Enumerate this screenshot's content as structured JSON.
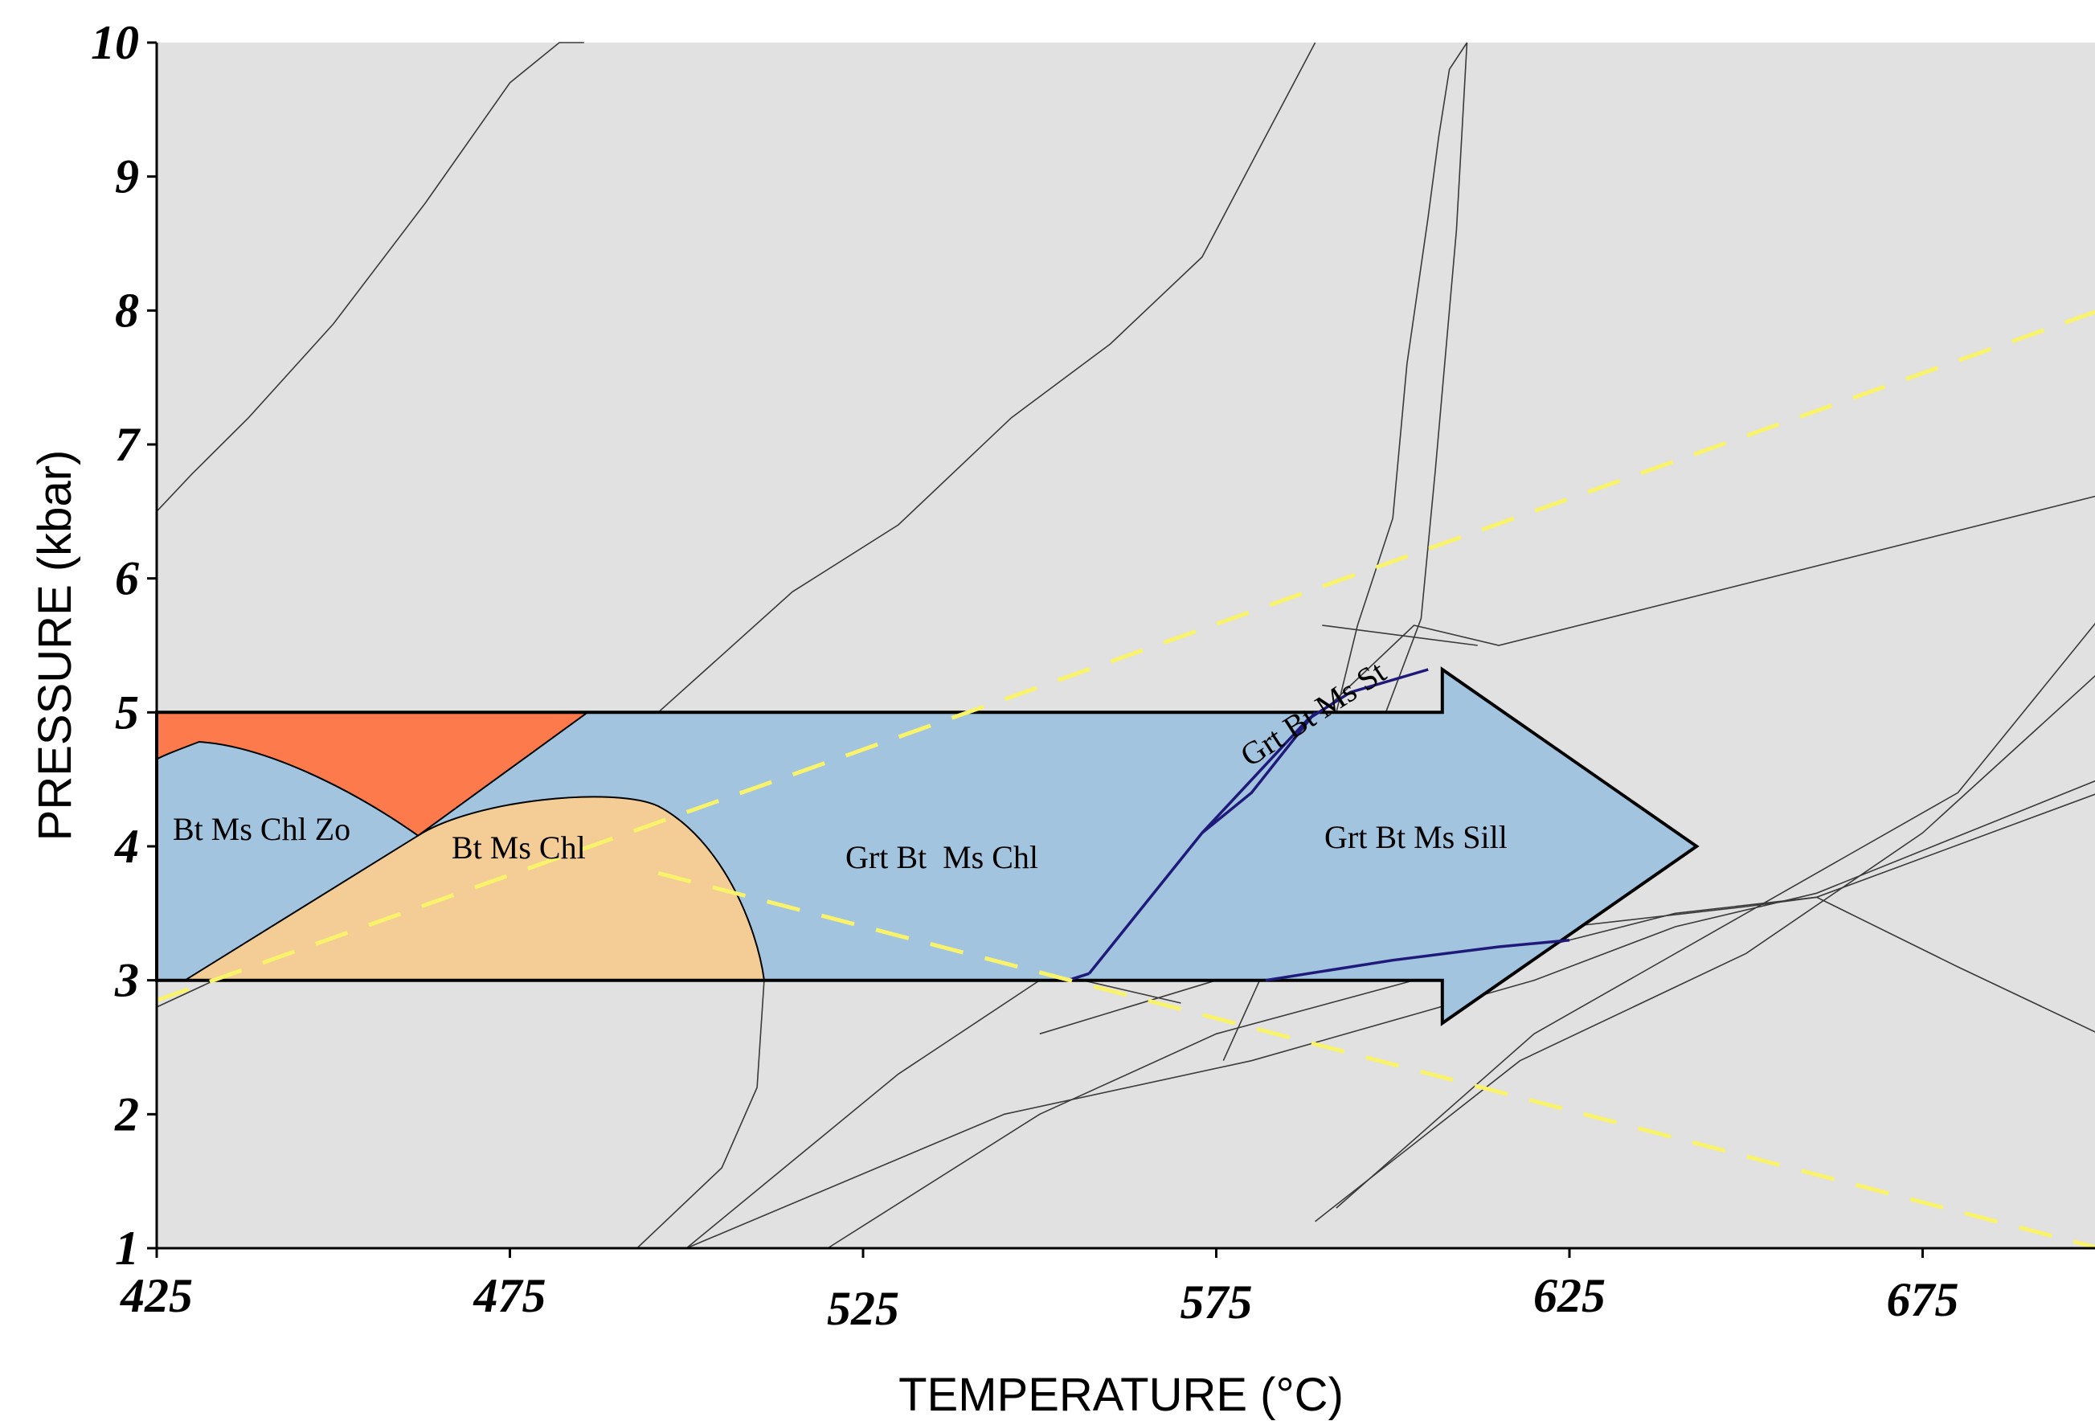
{
  "chart_data": {
    "type": "line",
    "title": "",
    "xlabel": "TEMPERATURE (°C)",
    "ylabel": "PRESSURE (kbar)",
    "xlim": [
      425,
      700
    ],
    "ylim": [
      1,
      10
    ],
    "x_ticks": [
      425,
      475,
      525,
      575,
      625,
      675
    ],
    "x_tick_labels": [
      "425",
      "475",
      "525",
      "575",
      "625",
      "675"
    ],
    "y_ticks": [
      1,
      2,
      3,
      4,
      5,
      6,
      7,
      8,
      9,
      10
    ],
    "y_tick_labels": [
      "1",
      "2",
      "3",
      "4",
      "5",
      "6",
      "7",
      "8",
      "9",
      "10"
    ],
    "background_color": "#e1e1e1",
    "grid": false,
    "legend": "none",
    "reaction_lines": [
      {
        "x": [
          425,
          430,
          438,
          450,
          463,
          475,
          482,
          485.5
        ],
        "y": [
          6.5,
          6.78,
          7.2,
          7.9,
          8.8,
          9.7,
          10,
          10
        ]
      },
      {
        "x": [
          425,
          470,
          486,
          496,
          515,
          530,
          546,
          560,
          573,
          581,
          589
        ],
        "y": [
          2.8,
          3.9,
          4.5,
          5.0,
          5.9,
          6.4,
          7.2,
          7.75,
          8.4,
          9.2,
          10
        ]
      },
      {
        "x": [
          576,
          588,
          599,
          604,
          606,
          609,
          610.5
        ],
        "y": [
          2.4,
          3.8,
          5.0,
          5.7,
          6.8,
          8.6,
          10
        ]
      },
      {
        "x": [
          582,
          590,
          592,
          595,
          600,
          602,
          605,
          606.5,
          608,
          610.5
        ],
        "y": [
          3.3,
          4.5,
          5.0,
          5.65,
          6.45,
          7.6,
          8.7,
          9.3,
          9.8,
          10
        ]
      },
      {
        "x": [
          500,
          530,
          550,
          555,
          575,
          590,
          603,
          615,
          700
        ],
        "y": [
          1,
          2.3,
          3.0,
          3.3,
          4.0,
          5.0,
          5.65,
          5.5,
          6.62
        ]
      },
      {
        "x": [
          590,
          612
        ],
        "y": [
          5.65,
          5.5
        ]
      },
      {
        "x": [
          589,
          618,
          650,
          675,
          700
        ],
        "y": [
          1.2,
          2.4,
          3.2,
          4.1,
          5.3
        ]
      },
      {
        "x": [
          592,
          620,
          650,
          680,
          700
        ],
        "y": [
          1.3,
          2.6,
          3.5,
          4.4,
          5.7
        ]
      },
      {
        "x": [
          500,
          545,
          580,
          620,
          640,
          660,
          700
        ],
        "y": [
          1,
          2.0,
          2.4,
          3.0,
          3.4,
          3.65,
          4.5
        ]
      },
      {
        "x": [
          520,
          550,
          575,
          610,
          640,
          660,
          700
        ],
        "y": [
          1,
          2.0,
          2.6,
          3.1,
          3.5,
          3.62,
          4.4
        ]
      },
      {
        "x": [
          550,
          575,
          600,
          625,
          650,
          660
        ],
        "y": [
          2.6,
          3.0,
          3.25,
          3.4,
          3.55,
          3.62
        ]
      },
      {
        "x": [
          660,
          680,
          700
        ],
        "y": [
          3.62,
          3.1,
          2.6
        ]
      },
      {
        "x": [
          552,
          570
        ],
        "y": [
          3.05,
          2.83
        ]
      },
      {
        "x": [
          493,
          505,
          510,
          511
        ],
        "y": [
          1,
          1.6,
          2.2,
          3
        ]
      }
    ],
    "yellow_dashed_lines": [
      {
        "x": [
          425,
          700
        ],
        "y": [
          2.85,
          8.0
        ]
      },
      {
        "x": [
          496,
          700
        ],
        "y": [
          3.8,
          1.0
        ]
      }
    ],
    "path_arrow": {
      "t_start": 425,
      "t_shaft_end": 607,
      "t_tip": 643,
      "p_shaft_top": 5.0,
      "p_shaft_bottom": 3.0,
      "p_head_top": 5.32,
      "p_head_bottom": 2.68,
      "p_tip": 4.0,
      "color": "#a2c4df"
    },
    "regions": [
      {
        "label": "Bt Ms Chl Zo",
        "color": "#a2c4df"
      },
      {
        "label": "Bt Ms Chl",
        "color": "#f3cd95"
      },
      {
        "label": "Grt Bt  Ms Chl",
        "color": "#a2c4df"
      },
      {
        "label": "Grt Bt Ms St",
        "color": "#a2c4df"
      },
      {
        "label": "Grt Bt Ms Sill",
        "color": "#a2c4df"
      },
      {
        "label": "",
        "color": "#fc7a4c"
      }
    ],
    "field_boundaries": [
      {
        "color": "#1f1a7a",
        "x": [
          557,
          573,
          588,
          594,
          605
        ],
        "y": [
          3.05,
          4.1,
          4.95,
          5.15,
          5.32
        ]
      },
      {
        "color": "#1f1a7a",
        "x": [
          573,
          580,
          589
        ],
        "y": [
          4.1,
          4.4,
          5.0
        ]
      },
      {
        "color": "#1f1a7a",
        "x": [
          582,
          600,
          615,
          625
        ],
        "y": [
          3.0,
          3.15,
          3.25,
          3.3
        ]
      },
      {
        "color": "#1f1a7a",
        "x": [
          554,
          557
        ],
        "y": [
          3.0,
          3.05
        ]
      }
    ]
  }
}
